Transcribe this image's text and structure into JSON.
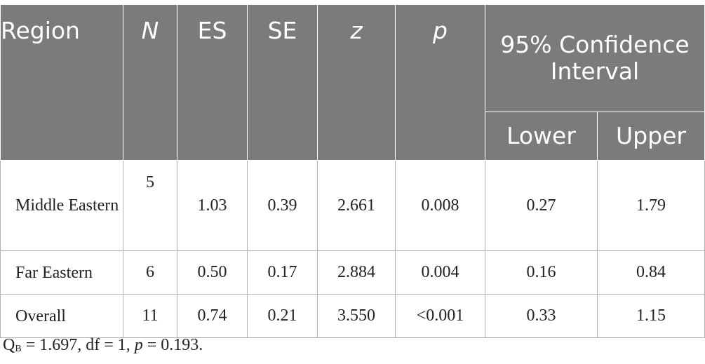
{
  "table": {
    "headers": {
      "region": "Region",
      "n": "N",
      "es": "ES",
      "se": "SE",
      "z": "z",
      "p": "p",
      "ci_group": "95% Confidence Interval",
      "lower": "Lower",
      "upper": "Upper"
    },
    "rows": [
      {
        "region": "Middle Eastern",
        "n": "5",
        "es": "1.03",
        "se": "0.39",
        "z": "2.661",
        "p": "0.008",
        "lower": "0.27",
        "upper": "1.79"
      },
      {
        "region": "Far Eastern",
        "n": "6",
        "es": "0.50",
        "se": "0.17",
        "z": "2.884",
        "p": "0.004",
        "lower": "0.16",
        "upper": "0.84"
      },
      {
        "region": "Overall",
        "n": "11",
        "es": "0.74",
        "se": "0.21",
        "z": "3.550",
        "p": "<0.001",
        "lower": "0.33",
        "upper": "1.15"
      }
    ]
  },
  "footnote": {
    "q_symbol": "Q",
    "q_subscript": "B",
    "q_value": " = 1.697, df = 1, ",
    "p_symbol": "p",
    "p_value": " = 0.193."
  },
  "colors": {
    "header_bg": "#7b7b7b",
    "header_text": "#ffffff",
    "grid": "#b3b3b3",
    "body_text": "#222222"
  }
}
